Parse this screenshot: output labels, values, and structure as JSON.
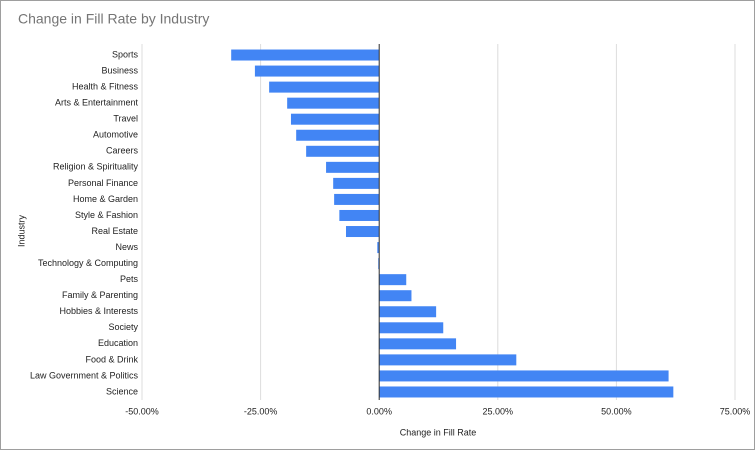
{
  "chart_data": {
    "type": "hbar",
    "title": "Change in Fill Rate by Industry",
    "x_label": "Change in Fill Rate",
    "y_label": "Industry",
    "categories": [
      "Sports",
      "Business",
      "Health & Fitness",
      "Arts & Entertainment",
      "Travel",
      "Automotive",
      "Careers",
      "Religion & Spirituality",
      "Personal Finance",
      "Home & Garden",
      "Style & Fashion",
      "Real Estate",
      "News",
      "Technology & Computing",
      "Pets",
      "Family & Parenting",
      "Hobbies & Interests",
      "Society",
      "Education",
      "Food & Drink",
      "Law Government & Politics",
      "Science"
    ],
    "values": [
      -31.2,
      -26.2,
      -23.2,
      -19.4,
      -18.6,
      -17.5,
      -15.4,
      -11.2,
      -9.7,
      -9.5,
      -8.4,
      -7.0,
      -0.4,
      -0.2,
      5.7,
      6.8,
      12.0,
      13.5,
      16.2,
      28.9,
      61.0,
      62.0
    ],
    "color": "#4285f4",
    "xlim": [
      -50,
      75
    ],
    "xticks": [
      {
        "value": -50,
        "label": "-50.00%"
      },
      {
        "value": -25,
        "label": "-25.00%"
      },
      {
        "value": 0,
        "label": "0.00%"
      },
      {
        "value": 25,
        "label": "25.00%"
      },
      {
        "value": 50,
        "label": "50.00%"
      },
      {
        "value": 75,
        "label": "75.00%"
      }
    ],
    "grid": true
  }
}
